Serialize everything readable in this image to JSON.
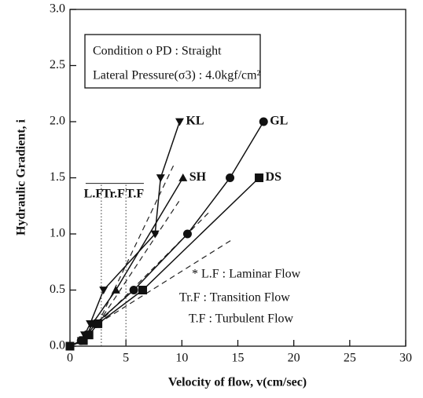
{
  "chart_data": {
    "type": "line",
    "xlabel": "Velocity of flow, v(cm/sec)",
    "ylabel": "Hydraulic Gradient, i",
    "xlim": [
      0,
      30
    ],
    "xticks": [
      0,
      5,
      10,
      15,
      20,
      25,
      30
    ],
    "ylim": [
      0,
      3
    ],
    "yticks": [
      {
        "value": 0,
        "label": "0.0"
      },
      0.5,
      {
        "value": 1,
        "label": "1.0"
      },
      1.5,
      {
        "value": 2,
        "label": "2.0"
      },
      2.5,
      {
        "value": 3,
        "label": "3.0"
      }
    ],
    "series": [
      {
        "name": "KL",
        "marker": "triangle-down",
        "color": "#111111",
        "x": [
          0,
          1.0,
          1.3,
          1.8,
          3.0,
          7.6,
          8.1,
          9.8
        ],
        "values": [
          0,
          0.05,
          0.1,
          0.2,
          0.5,
          1.0,
          1.5,
          2.0
        ]
      },
      {
        "name": "SH",
        "marker": "triangle-up",
        "color": "#111111",
        "x": [
          0,
          1.0,
          1.5,
          2.0,
          4.1,
          10.1
        ],
        "values": [
          0,
          0.05,
          0.1,
          0.2,
          0.5,
          1.5
        ]
      },
      {
        "name": "GL",
        "marker": "circle",
        "color": "#111111",
        "x": [
          0,
          1.0,
          1.5,
          2.3,
          5.7,
          10.5,
          14.3,
          17.3
        ],
        "values": [
          0,
          0.05,
          0.1,
          0.2,
          0.5,
          1.0,
          1.5,
          2.0
        ]
      },
      {
        "name": "DS",
        "marker": "square",
        "color": "#111111",
        "x": [
          0,
          1.2,
          1.7,
          2.5,
          6.5,
          16.9
        ],
        "values": [
          0,
          0.05,
          0.1,
          0.2,
          0.5,
          1.5
        ]
      }
    ],
    "dashed_lines": [
      {
        "x": [
          2.5,
          9.3
        ],
        "y": [
          0.2,
          1.62
        ]
      },
      {
        "x": [
          2.5,
          9.8
        ],
        "y": [
          0.2,
          1.3
        ]
      },
      {
        "x": [
          2.5,
          12.5
        ],
        "y": [
          0.2,
          1.2
        ]
      },
      {
        "x": [
          2.5,
          14.5
        ],
        "y": [
          0.2,
          0.95
        ]
      }
    ],
    "flow_regions": {
      "labels": [
        "L.F",
        "Tr.F",
        "T.F"
      ],
      "bounds": [
        1.4,
        2.8,
        5.0,
        6.6
      ],
      "y": 1.45
    },
    "condition_box": [
      "Condition o PD : Straight",
      "Lateral Pressure(σ3) : 4.0kgf/cm²"
    ],
    "notes": [
      "* L.F : Laminar Flow",
      "Tr.F : Transition Flow",
      "T.F : Turbulent Flow"
    ]
  }
}
